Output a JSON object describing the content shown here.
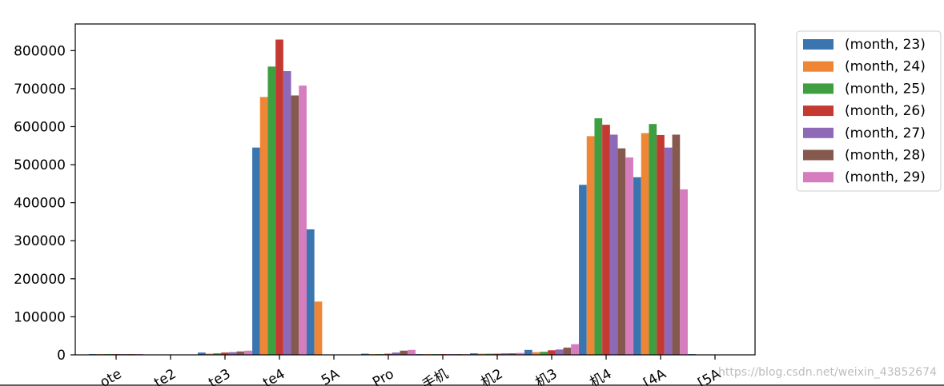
{
  "chart_data": {
    "type": "bar",
    "title": "",
    "xlabel": "",
    "ylabel": "",
    "ylim": [
      0,
      870000
    ],
    "yticks": [
      0,
      100000,
      200000,
      300000,
      400000,
      500000,
      600000,
      700000,
      800000
    ],
    "grid": false,
    "legend_position": "outside-top-right",
    "categories": [
      "ote",
      "te2",
      "te3",
      "te4",
      "5A",
      "Pro",
      "手机",
      "机2",
      "机3",
      "机4",
      "[4A",
      "[5A"
    ],
    "series": [
      {
        "name": "(month, 23)",
        "color": "#3a75b0",
        "values": [
          2000,
          0,
          6000,
          545000,
          0,
          3000,
          2000,
          4000,
          13000,
          447000,
          467000,
          2000
        ]
      },
      {
        "name": "(month, 24)",
        "color": "#ef8636",
        "values": [
          2000,
          0,
          3000,
          678000,
          0,
          2000,
          2000,
          3000,
          7000,
          575000,
          583000,
          0
        ]
      },
      {
        "name": "(month, 25)",
        "color": "#3f9e40",
        "values": [
          2000,
          0,
          4000,
          758000,
          0,
          2000,
          2000,
          3000,
          8000,
          622000,
          607000,
          0
        ]
      },
      {
        "name": "(month, 26)",
        "color": "#c43932",
        "values": [
          2000,
          0,
          6000,
          829000,
          0,
          3000,
          2000,
          3000,
          12000,
          605000,
          578000,
          0
        ]
      },
      {
        "name": "(month, 27)",
        "color": "#8d69b8",
        "values": [
          2000,
          0,
          7000,
          746000,
          0,
          6000,
          2000,
          4000,
          14000,
          579000,
          545000,
          0
        ]
      },
      {
        "name": "(month, 28)",
        "color": "#85594e",
        "values": [
          2000,
          0,
          9000,
          682000,
          0,
          11000,
          2000,
          4000,
          19000,
          543000,
          579000,
          0
        ]
      },
      {
        "name": "(month, 29)",
        "color": "#d57dbf",
        "values": [
          2000,
          0,
          11000,
          708000,
          0,
          13000,
          2000,
          5000,
          28000,
          519000,
          435000,
          0
        ]
      }
    ],
    "overflow_bar": {
      "value": 330000,
      "color": "#3a75b0"
    },
    "overflow_bar2": {
      "value": 140000,
      "color": "#ef8636"
    }
  },
  "watermark": "https://blog.csdn.net/weixin_43852674"
}
